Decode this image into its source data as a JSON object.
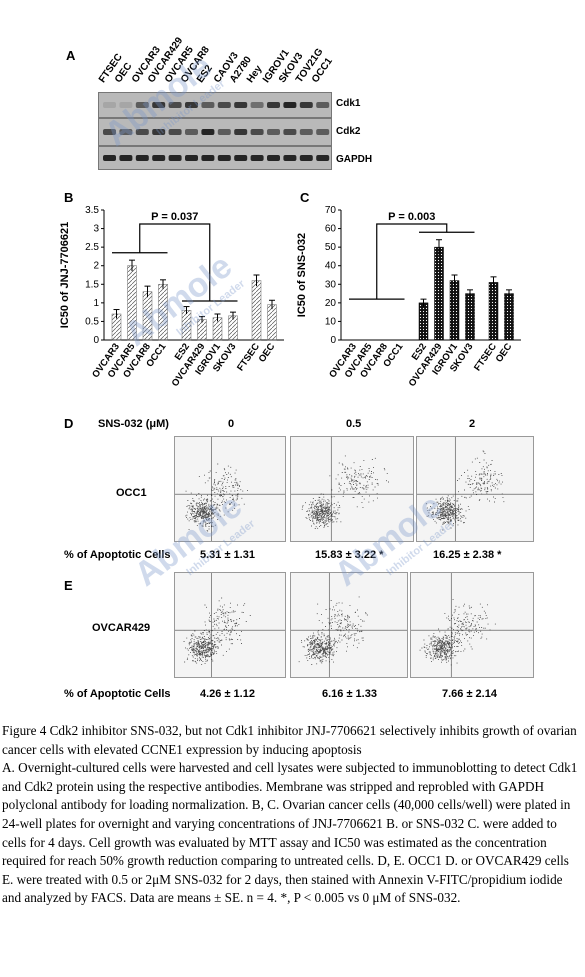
{
  "panels": {
    "A": {
      "letter": "A",
      "lanes": [
        "FTSEC",
        "OEC",
        "OVCAR3",
        "OVCAR429",
        "OVCAR5",
        "OVCAR8",
        "ES2",
        "CAOV3",
        "A2780",
        "Hey",
        "IGROV1",
        "SKOV3",
        "TOV21G",
        "OCC1"
      ],
      "bands": [
        "Cdk1",
        "Cdk2",
        "GAPDH"
      ]
    },
    "B": {
      "letter": "B",
      "pvalue": "P = 0.037"
    },
    "C": {
      "letter": "C",
      "pvalue": "P = 0.003"
    },
    "D": {
      "letter": "D",
      "treatment_label": "SNS-032 (μM)",
      "doses": [
        "0",
        "0.5",
        "2"
      ],
      "cell_line": "OCC1",
      "apoptotic_label": "% of Apoptotic Cells",
      "values": [
        "5.31 ± 1.31",
        "15.83 ± 3.22 *",
        "16.25 ± 2.38 *"
      ]
    },
    "E": {
      "letter": "E",
      "cell_line": "OVCAR429",
      "apoptotic_label": "% of Apoptotic Cells",
      "values": [
        "4.26 ± 1.12",
        "6.16 ± 1.33",
        "7.66 ± 2.14"
      ]
    }
  },
  "chart_data": [
    {
      "type": "bar",
      "panel": "B",
      "ylabel": "IC50 of JNJ-7706621",
      "ylim": [
        0,
        3.5
      ],
      "yticks": [
        "0",
        "0.5",
        "1",
        "1.5",
        "2",
        "2.5",
        "3",
        "3.5"
      ],
      "categories": [
        "OVCAR3",
        "OVCAR5",
        "OVCAR8",
        "OCC1",
        "ES2",
        "OVCAR429",
        "IGROV1",
        "SKOV3",
        "FTSEC",
        "OEC"
      ],
      "values": [
        0.7,
        2.0,
        1.3,
        1.5,
        0.8,
        0.55,
        0.6,
        0.65,
        1.6,
        0.95
      ],
      "errors": [
        0.12,
        0.15,
        0.15,
        0.12,
        0.1,
        0.08,
        0.1,
        0.1,
        0.15,
        0.12
      ],
      "groups": [
        0,
        0,
        0,
        0,
        1,
        1,
        1,
        1,
        2,
        2
      ],
      "annotation": "P = 0.037",
      "grid": false
    },
    {
      "type": "bar",
      "panel": "C",
      "ylabel": "IC50 of SNS-032",
      "ylim": [
        0,
        70
      ],
      "yticks": [
        "0",
        "10",
        "20",
        "30",
        "40",
        "50",
        "60",
        "70"
      ],
      "categories": [
        "OVCAR3",
        "OVCAR5",
        "OVCAR8",
        "OCC1",
        "ES2",
        "OVCAR429",
        "IGROV1",
        "SKOV3",
        "FTSEC",
        "OEC"
      ],
      "values": [
        0,
        0,
        0,
        0,
        20,
        50,
        32,
        25,
        31,
        25
      ],
      "errors": [
        0,
        0,
        0,
        0,
        2,
        4,
        3,
        2,
        3,
        2
      ],
      "groups": [
        0,
        0,
        0,
        0,
        1,
        1,
        1,
        1,
        2,
        2
      ],
      "annotation": "P = 0.003",
      "grid": false
    }
  ],
  "caption": {
    "paragraphs": [
      "Figure 4 Cdk2 inhibitor SNS-032, but not Cdk1 inhibitor JNJ-7706621 selectively inhibits growth of ovarian cancer cells with elevated CCNE1 expression by inducing apoptosis",
      "A. Overnight-cultured cells were harvested and cell lysates were subjected to immunoblotting to detect Cdk1 and Cdk2 protein using the respective antibodies. Membrane was stripped and reprobled with GAPDH polyclonal antibody for loading normalization. B, C. Ovarian cancer cells (40,000 cells/well) were plated in 24-well plates for overnight and varying concentrations of JNJ-7706621 B. or SNS-032 C. were added to cells for 4 days. Cell growth was evaluated by MTT assay and IC50 was estimated as the concentration required for reach 50% growth reduction comparing to untreated cells. D, E. OCC1 D. or OVCAR429 cells E. were treated with 0.5 or 2μM SNS-032 for 2 days, then stained with Annexin V-FITC/propidium iodide and analyzed by FACS. Data are means ± SE. n = 4. *, P < 0.005 vs 0 μM of SNS-032."
    ]
  },
  "watermark": {
    "brand": "Abmole",
    "tagline": "Inhibitor Leader",
    "color": "#7896c8"
  }
}
